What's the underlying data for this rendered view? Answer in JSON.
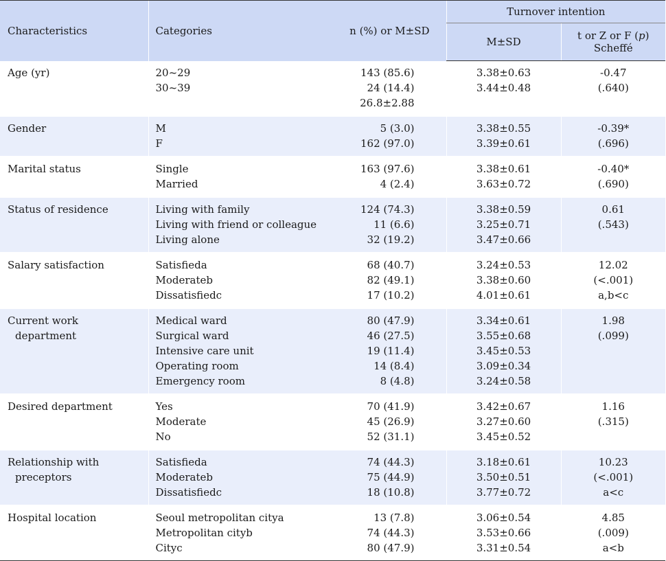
{
  "header": {
    "characteristics": "Characteristics",
    "categories": "Categories",
    "n_label": "n (%) or M±SD",
    "group": "Turnover intention",
    "msd": "M±SD",
    "stat_line1_a": "t or Z or F (",
    "stat_line1_p": "p",
    "stat_line1_b": ")",
    "stat_line2": "Scheffé"
  },
  "rows": [
    {
      "char": [
        "Age (yr)"
      ],
      "cats": [
        "20~29",
        "30~39",
        ""
      ],
      "n": [
        "143 (85.6)",
        "24 (14.4)",
        "26.8±2.88"
      ],
      "msd": [
        "3.38±0.63",
        "3.44±0.48",
        ""
      ],
      "stat": [
        "-0.47",
        "(.640)",
        ""
      ]
    },
    {
      "char": [
        "Gender"
      ],
      "cats": [
        "M",
        "F"
      ],
      "n": [
        "5 (3.0)",
        "162 (97.0)"
      ],
      "msd": [
        "3.38±0.55",
        "3.39±0.61"
      ],
      "stat": [
        "-0.39*",
        "(.696)"
      ]
    },
    {
      "char": [
        "Marital status"
      ],
      "cats": [
        "Single",
        "Married"
      ],
      "n": [
        "163 (97.6)",
        "4 (2.4)"
      ],
      "msd": [
        "3.38±0.61",
        "3.63±0.72"
      ],
      "stat": [
        "-0.40*",
        "(.690)"
      ]
    },
    {
      "char": [
        "Status of residence"
      ],
      "cats": [
        "Living with family",
        "Living with friend or colleague",
        "Living alone"
      ],
      "n": [
        "124 (74.3)",
        "11 (6.6)",
        "32 (19.2)"
      ],
      "msd": [
        "3.38±0.59",
        "3.25±0.71",
        "3.47±0.66"
      ],
      "stat": [
        "0.61",
        "(.543)",
        ""
      ]
    },
    {
      "char": [
        "Salary satisfaction"
      ],
      "cats": [
        "Satisfieda",
        "Moderateb",
        "Dissatisfiedc"
      ],
      "n": [
        "68 (40.7)",
        "82 (49.1)",
        "17 (10.2)"
      ],
      "msd": [
        "3.24±0.53",
        "3.38±0.60",
        "4.01±0.61"
      ],
      "stat": [
        "12.02",
        "(<.001)",
        "a,b<c"
      ]
    },
    {
      "char": [
        "Current work",
        "department"
      ],
      "cats": [
        "Medical ward",
        "Surgical ward",
        "Intensive care unit",
        "Operating room",
        "Emergency room"
      ],
      "n": [
        "80 (47.9)",
        "46 (27.5)",
        "19 (11.4)",
        "14 (8.4)",
        "8 (4.8)"
      ],
      "msd": [
        "3.34±0.61",
        "3.55±0.68",
        "3.45±0.53",
        "3.09±0.34",
        "3.24±0.58"
      ],
      "stat": [
        "1.98",
        "(.099)",
        "",
        "",
        ""
      ]
    },
    {
      "char": [
        "Desired department"
      ],
      "cats": [
        "Yes",
        "Moderate",
        "No"
      ],
      "n": [
        "70 (41.9)",
        "45 (26.9)",
        "52 (31.1)"
      ],
      "msd": [
        "3.42±0.67",
        "3.27±0.60",
        "3.45±0.52"
      ],
      "stat": [
        "1.16",
        "(.315)",
        ""
      ]
    },
    {
      "char": [
        "Relationship with",
        "preceptors"
      ],
      "cats": [
        "Satisfieda",
        "Moderateb",
        "Dissatisfiedc"
      ],
      "n": [
        "74 (44.3)",
        "75 (44.9)",
        "18 (10.8)"
      ],
      "msd": [
        "3.18±0.61",
        "3.50±0.51",
        "3.77±0.72"
      ],
      "stat": [
        "10.23",
        "(<.001)",
        "a<c"
      ]
    },
    {
      "char": [
        "Hospital location"
      ],
      "cats": [
        "Seoul metropolitan citya",
        "Metropolitan cityb",
        "Cityc"
      ],
      "n": [
        "13 (7.8)",
        "74 (44.3)",
        "80 (47.9)"
      ],
      "msd": [
        "3.06±0.54",
        "3.53±0.66",
        "3.31±0.54"
      ],
      "stat": [
        "4.85",
        "(.009)",
        "a<b"
      ]
    }
  ]
}
